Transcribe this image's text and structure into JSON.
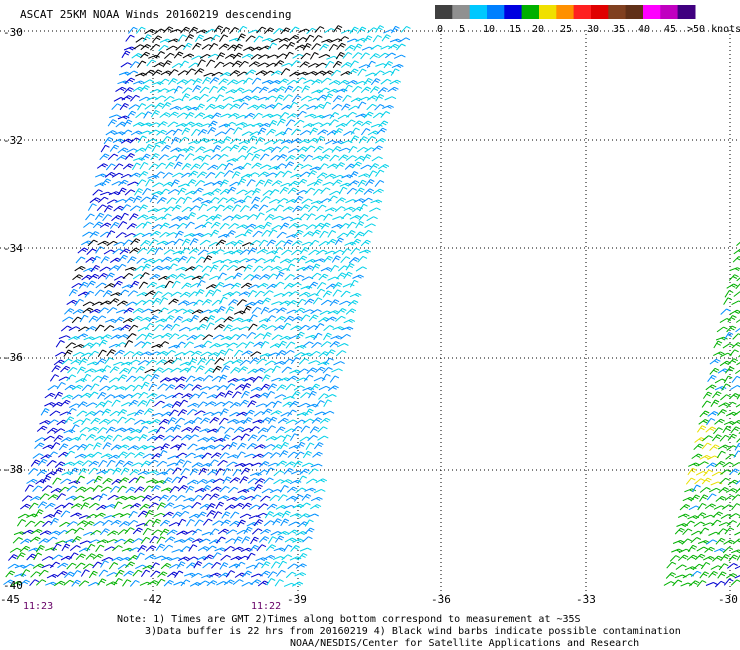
{
  "title": "ASCAT 25KM NOAA Winds 20160219 descending",
  "legend": {
    "labels": [
      "0",
      "5",
      "10",
      "15",
      "20",
      "25",
      "30",
      "35",
      "40",
      "45",
      ">50 knots"
    ],
    "colors": [
      "#404040",
      "#909090",
      "#00c8ff",
      "#0080ff",
      "#0000e0",
      "#00b000",
      "#f0e000",
      "#ff9000",
      "#ff2020",
      "#e00000",
      "#804020",
      "#603018",
      "#ff00ff",
      "#c000c0",
      "#400080"
    ]
  },
  "axes": {
    "lat_labels": [
      "-30",
      "-32",
      "-34",
      "-36",
      "-38",
      "-40"
    ],
    "lon_labels": [
      "-45",
      "-42",
      "-39",
      "-36",
      "-33",
      "-30"
    ]
  },
  "times": [
    "11:23",
    "11:22"
  ],
  "notes": [
    "Note: 1) Times are GMT 2)Times along bottom correspond to measurement at ~35S",
    "3)Data buffer is 22 hrs from 20160219 4) Black wind barbs indicate possible contamination",
    "NOAA/NESDIS/Center for Satellite Applications and Research"
  ]
}
